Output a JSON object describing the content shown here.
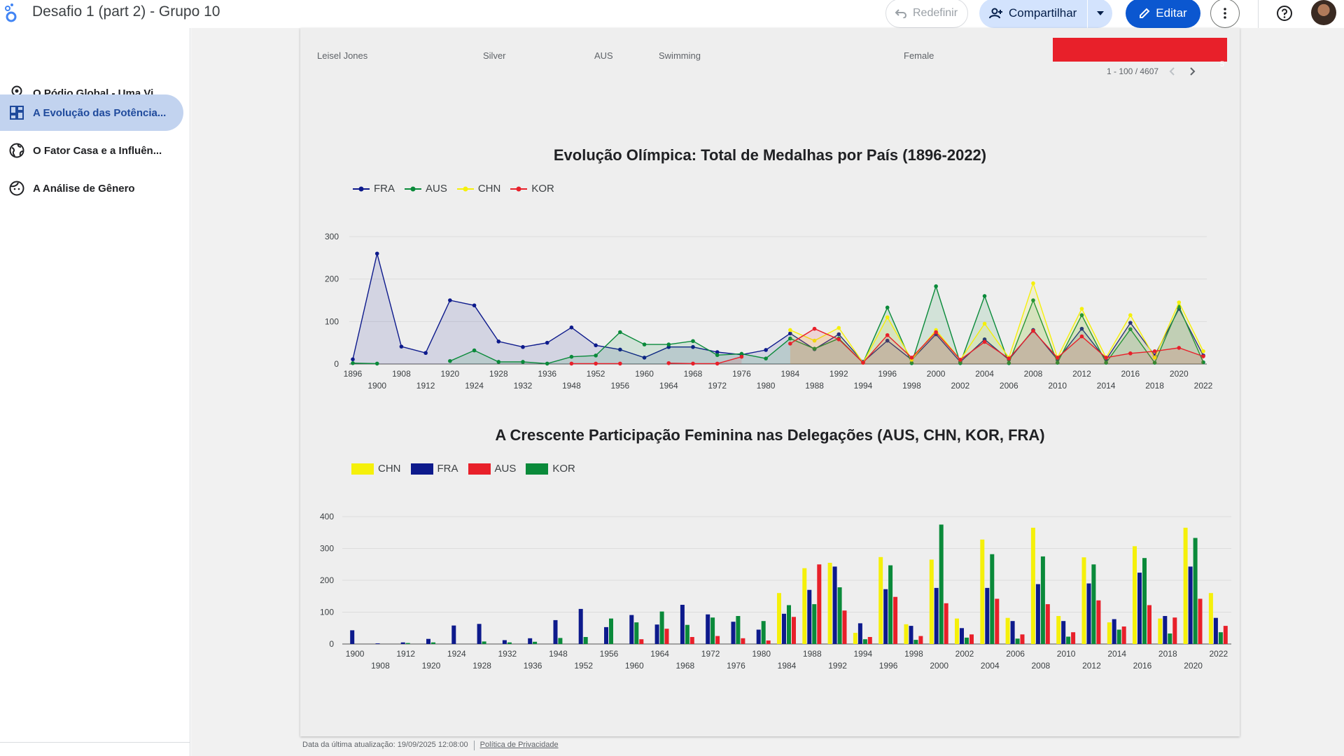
{
  "header": {
    "title": "Desafio 1 (part 2) - Grupo 10",
    "reset_label": "Redefinir",
    "share_label": "Compartilhar",
    "edit_label": "Editar"
  },
  "sidebar": {
    "items": [
      {
        "label": "O Pódio Global - Uma Vi...",
        "icon": "award-icon"
      },
      {
        "label": "A Evolução das Potência...",
        "icon": "dashboard-icon"
      },
      {
        "label": "O Fator Casa e a Influên...",
        "icon": "globe-icon"
      },
      {
        "label": "A Análise de Gênero",
        "icon": "face-icon"
      }
    ]
  },
  "table": {
    "row": {
      "name": "Leisel Jones",
      "medal": "Silver",
      "country": "AUS",
      "sport": "Swimming",
      "sex": "Female",
      "bar_value": "5"
    },
    "pagination": "1 - 100 / 4607"
  },
  "colors": {
    "FRA": "#0d1a8c",
    "AUS": "#0a8a3a",
    "CHN": "#f5f00a",
    "KOR": "#e8202a",
    "accent": "#0b57d0"
  },
  "chart_data": [
    {
      "type": "line",
      "title": "Evolução Olímpica: Total de Medalhas por País (1896-2022)",
      "categories": [
        "1896",
        "1900",
        "1908",
        "1912",
        "1920",
        "1924",
        "1928",
        "1932",
        "1936",
        "1948",
        "1952",
        "1956",
        "1960",
        "1964",
        "1968",
        "1972",
        "1976",
        "1980",
        "1984",
        "1988",
        "1992",
        "1994",
        "1996",
        "1998",
        "2000",
        "2002",
        "2004",
        "2006",
        "2008",
        "2010",
        "2012",
        "2014",
        "2016",
        "2018",
        "2020",
        "2022"
      ],
      "series": [
        {
          "name": "FRA",
          "values": [
            11,
            260,
            41,
            26,
            150,
            138,
            53,
            40,
            50,
            86,
            44,
            34,
            15,
            40,
            40,
            28,
            22,
            33,
            72,
            35,
            70,
            5,
            55,
            10,
            70,
            5,
            58,
            10,
            80,
            10,
            83,
            10,
            97,
            20,
            130,
            20
          ]
        },
        {
          "name": "AUS",
          "values": [
            2,
            1,
            null,
            null,
            7,
            32,
            5,
            5,
            1,
            17,
            20,
            75,
            46,
            46,
            54,
            21,
            24,
            13,
            60,
            36,
            60,
            3,
            133,
            2,
            183,
            2,
            160,
            2,
            150,
            3,
            115,
            3,
            82,
            3,
            135,
            4
          ]
        },
        {
          "name": "CHN",
          "values": [
            null,
            null,
            null,
            null,
            null,
            null,
            null,
            null,
            null,
            null,
            null,
            null,
            null,
            null,
            null,
            null,
            null,
            null,
            80,
            55,
            85,
            3,
            110,
            10,
            80,
            10,
            95,
            15,
            190,
            15,
            130,
            15,
            115,
            15,
            145,
            30
          ]
        },
        {
          "name": "KOR",
          "values": [
            null,
            null,
            null,
            null,
            null,
            null,
            null,
            null,
            null,
            1,
            1,
            1,
            null,
            2,
            1,
            1,
            17,
            null,
            48,
            83,
            58,
            3,
            68,
            15,
            75,
            10,
            52,
            13,
            78,
            15,
            65,
            15,
            25,
            30,
            38,
            18
          ]
        }
      ],
      "ylim": [
        0,
        300
      ],
      "yticks": [
        "0",
        "100",
        "200",
        "300"
      ],
      "legend": "top-left"
    },
    {
      "type": "bar",
      "title": "A Crescente Participação Feminina nas Delegações (AUS, CHN, KOR, FRA)",
      "categories": [
        "1900",
        "1908",
        "1912",
        "1920",
        "1924",
        "1928",
        "1932",
        "1936",
        "1948",
        "1952",
        "1956",
        "1960",
        "1964",
        "1968",
        "1972",
        "1976",
        "1980",
        "1984",
        "1988",
        "1992",
        "1994",
        "1996",
        "1998",
        "2000",
        "2002",
        "2004",
        "2006",
        "2008",
        "2010",
        "2012",
        "2014",
        "2016",
        "2018",
        "2020",
        "2022"
      ],
      "series": [
        {
          "name": "CHN",
          "values": [
            0,
            0,
            0,
            0,
            0,
            0,
            0,
            0,
            0,
            0,
            0,
            0,
            0,
            0,
            0,
            0,
            0,
            160,
            238,
            255,
            35,
            273,
            62,
            265,
            80,
            328,
            82,
            365,
            88,
            272,
            68,
            307,
            80,
            365,
            160
          ]
        },
        {
          "name": "FRA",
          "values": [
            43,
            2,
            5,
            16,
            58,
            63,
            12,
            18,
            75,
            110,
            53,
            91,
            61,
            123,
            93,
            70,
            45,
            95,
            170,
            243,
            65,
            172,
            57,
            176,
            50,
            176,
            72,
            188,
            72,
            190,
            78,
            224,
            88,
            243,
            82
          ]
        },
        {
          "name": "AUS",
          "values": [
            0,
            0,
            3,
            5,
            0,
            8,
            5,
            7,
            19,
            22,
            80,
            68,
            102,
            60,
            83,
            88,
            72,
            122,
            125,
            178,
            15,
            247,
            13,
            375,
            20,
            282,
            17,
            275,
            23,
            250,
            45,
            270,
            33,
            333,
            37
          ]
        },
        {
          "name": "KOR",
          "values": [
            0,
            0,
            0,
            0,
            0,
            0,
            0,
            0,
            0,
            0,
            0,
            15,
            48,
            22,
            25,
            18,
            11,
            85,
            250,
            105,
            22,
            148,
            25,
            128,
            30,
            142,
            30,
            125,
            37,
            137,
            55,
            122,
            83,
            142,
            57
          ]
        }
      ],
      "ylim": [
        0,
        400
      ],
      "yticks": [
        "0",
        "100",
        "200",
        "300",
        "400"
      ],
      "legend": "top-left"
    }
  ],
  "footer": {
    "updated": "Data da última atualização: 19/09/2025 12:08:00",
    "privacy": "Política de Privacidade"
  }
}
